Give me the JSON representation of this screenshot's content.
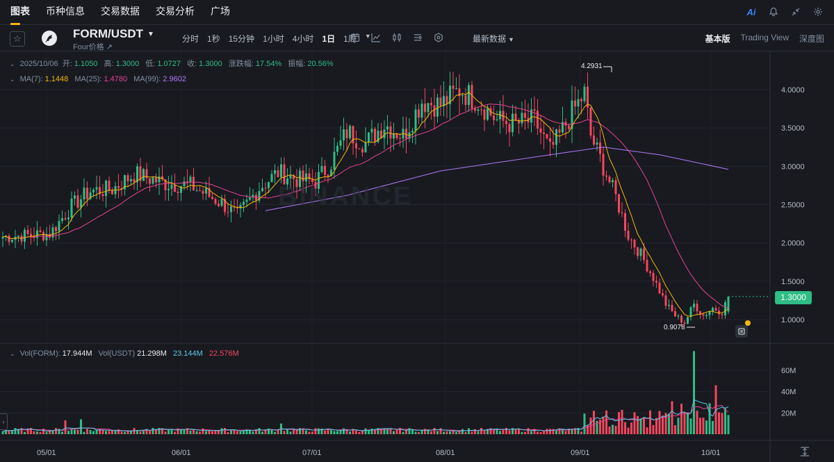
{
  "nav": {
    "tabs": [
      {
        "label": "图表",
        "active": true
      },
      {
        "label": "币种信息",
        "active": false
      },
      {
        "label": "交易数据",
        "active": false
      },
      {
        "label": "交易分析",
        "active": false
      },
      {
        "label": "广场",
        "active": false
      }
    ],
    "ai_label": "Ai",
    "right_icons": [
      "ai-icon",
      "bell-icon",
      "collapse-icon",
      "settings-icon"
    ]
  },
  "toolbar": {
    "pair": "FORM/USDT",
    "subname": "Four价格",
    "intervals": [
      {
        "label": "分时",
        "active": false
      },
      {
        "label": "1秒",
        "active": false
      },
      {
        "label": "15分钟",
        "active": false
      },
      {
        "label": "1小时",
        "active": false
      },
      {
        "label": "4小时",
        "active": false
      },
      {
        "label": "1日",
        "active": true
      },
      {
        "label": "1周",
        "active": false
      }
    ],
    "latest_label": "最新数据",
    "views": [
      {
        "label": "基本版",
        "active": true
      },
      {
        "label": "Trading View",
        "active": false
      },
      {
        "label": "深度图",
        "active": false
      }
    ]
  },
  "ohlc": {
    "date": "2025/10/06",
    "open_label": "开:",
    "open": "1.1050",
    "high_label": "高:",
    "high": "1.3000",
    "low_label": "低:",
    "low": "1.0727",
    "close_label": "收:",
    "close": "1.3000",
    "change_label": "涨跌幅:",
    "change": "17.54%",
    "amp_label": "振幅:",
    "amp": "20.56%"
  },
  "ma": {
    "ma7_label": "MA(7):",
    "ma7": "1.1448",
    "ma25_label": "MA(25):",
    "ma25": "1.4780",
    "ma99_label": "MA(99):",
    "ma99": "2.9602"
  },
  "vol": {
    "form_label": "Vol(FORM):",
    "form": "17.944M",
    "usdt_label": "Vol(USDT)",
    "usdt": "21.298M",
    "ma1": "23.144M",
    "ma2": "22.576M"
  },
  "markers": {
    "current_price": "1.3000",
    "high": "4.2931",
    "low": "0.9078"
  },
  "watermark": "BINANCE",
  "colors": {
    "up": "#2ebd85",
    "down": "#f6465d",
    "ma7": "#f0b90b",
    "ma25": "#e84393",
    "ma99": "#b27af7",
    "vol_ma1": "#5fc9e6",
    "vol_ma2": "#e84393"
  },
  "chart_data": {
    "type": "candlestick",
    "price_axis": {
      "ticks": [
        "4.0000",
        "3.5000",
        "3.0000",
        "2.5000",
        "2.0000",
        "1.5000",
        "1.0000"
      ],
      "ylim": [
        0.72,
        4.38
      ]
    },
    "volume_axis": {
      "ticks": [
        "60M",
        "40M",
        "20M"
      ],
      "ylim": [
        0,
        85
      ]
    },
    "x_ticks": [
      "05/01",
      "06/01",
      "07/01",
      "08/01",
      "09/01",
      "10/01"
    ],
    "anchors": [
      {
        "day": 0,
        "price": 2.08
      },
      {
        "day": 15,
        "price": 2.12
      },
      {
        "day": 22,
        "price": 2.48
      },
      {
        "day": 28,
        "price": 2.68
      },
      {
        "day": 35,
        "price": 2.7
      },
      {
        "day": 42,
        "price": 2.9
      },
      {
        "day": 52,
        "price": 2.78
      },
      {
        "day": 60,
        "price": 2.75
      },
      {
        "day": 70,
        "price": 2.52
      },
      {
        "day": 75,
        "price": 2.35
      },
      {
        "day": 82,
        "price": 2.72
      },
      {
        "day": 88,
        "price": 2.92
      },
      {
        "day": 95,
        "price": 2.82
      },
      {
        "day": 100,
        "price": 2.8
      },
      {
        "day": 105,
        "price": 3.05
      },
      {
        "day": 110,
        "price": 3.45
      },
      {
        "day": 116,
        "price": 3.3
      },
      {
        "day": 122,
        "price": 3.55
      },
      {
        "day": 128,
        "price": 3.4
      },
      {
        "day": 134,
        "price": 3.85
      },
      {
        "day": 140,
        "price": 3.8
      },
      {
        "day": 146,
        "price": 4.0
      },
      {
        "day": 152,
        "price": 3.85
      },
      {
        "day": 158,
        "price": 3.6
      },
      {
        "day": 164,
        "price": 3.55
      },
      {
        "day": 170,
        "price": 3.6
      },
      {
        "day": 175,
        "price": 3.2
      },
      {
        "day": 178,
        "price": 3.4
      },
      {
        "day": 182,
        "price": 3.7
      },
      {
        "day": 186,
        "price": 3.95
      },
      {
        "day": 188,
        "price": 3.4
      },
      {
        "day": 192,
        "price": 3.0
      },
      {
        "day": 196,
        "price": 2.6
      },
      {
        "day": 200,
        "price": 2.1
      },
      {
        "day": 204,
        "price": 1.85
      },
      {
        "day": 208,
        "price": 1.55
      },
      {
        "day": 212,
        "price": 1.2
      },
      {
        "day": 215,
        "price": 1.05
      },
      {
        "day": 218,
        "price": 0.96
      },
      {
        "day": 221,
        "price": 1.2
      },
      {
        "day": 224,
        "price": 1.05
      },
      {
        "day": 227,
        "price": 1.15
      },
      {
        "day": 230,
        "price": 1.1
      },
      {
        "day": 232,
        "price": 1.3
      }
    ],
    "ma99_start": {
      "day": 84,
      "price": 2.42
    },
    "ma99_points": [
      {
        "day": 84,
        "price": 2.42
      },
      {
        "day": 110,
        "price": 2.62
      },
      {
        "day": 140,
        "price": 2.94
      },
      {
        "day": 175,
        "price": 3.15
      },
      {
        "day": 192,
        "price": 3.25
      },
      {
        "day": 210,
        "price": 3.15
      },
      {
        "day": 232,
        "price": 2.96
      }
    ]
  }
}
